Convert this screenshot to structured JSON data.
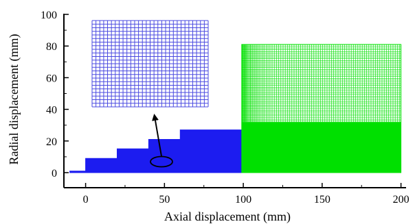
{
  "chart_data": {
    "type": "diagram",
    "xlabel": "Axial displacement (mm)",
    "ylabel": "Radial displacement (mm)",
    "xlim": [
      -10,
      200
    ],
    "ylim": [
      0,
      100
    ],
    "xticks": [
      0,
      50,
      100,
      150,
      200
    ],
    "yticks": [
      0,
      20,
      40,
      60,
      80,
      100
    ],
    "xtick_labels": [
      "0",
      "50",
      "100",
      "150",
      "200"
    ],
    "ytick_labels": [
      "0",
      "20",
      "40",
      "60",
      "80",
      "100"
    ],
    "regions": [
      {
        "kind": "stepped-profile",
        "color": "#1c1cf0",
        "outline": [
          [
            -10,
            0
          ],
          [
            -10,
            1
          ],
          [
            0,
            1
          ],
          [
            0,
            9
          ],
          [
            20,
            9
          ],
          [
            20,
            15
          ],
          [
            40,
            15
          ],
          [
            40,
            21
          ],
          [
            60,
            21
          ],
          [
            60,
            27
          ],
          [
            99,
            27
          ],
          [
            99,
            0
          ]
        ]
      },
      {
        "kind": "mesh-block",
        "color": "#00e000",
        "x_range": [
          99,
          200
        ],
        "y_range": [
          0,
          81
        ],
        "dense_y_top": 32
      }
    ],
    "annotations": [
      {
        "kind": "ellipse",
        "center": [
          47.5,
          7
        ],
        "color": "#000000"
      },
      {
        "kind": "arrow",
        "from": [
          47.5,
          9
        ],
        "to": [
          43,
          36
        ],
        "color": "#000000"
      },
      {
        "kind": "zoom-inset-mesh",
        "color": "#4a4ae0"
      }
    ]
  }
}
